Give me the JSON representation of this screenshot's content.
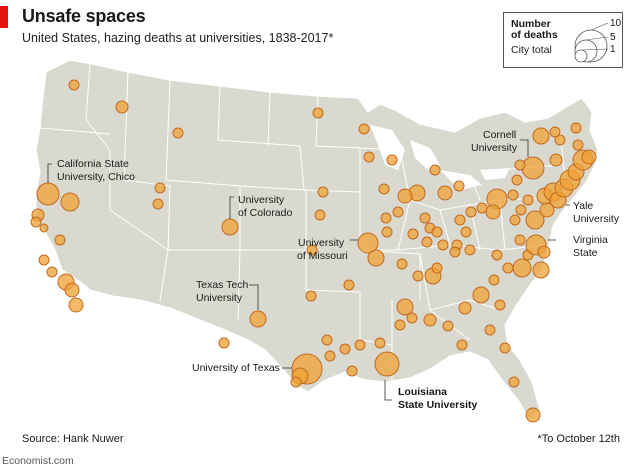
{
  "header": {
    "title": "Unsafe spaces",
    "subtitle": "United States, hazing deaths at universities, 1838-2017*"
  },
  "legend": {
    "title_line1": "Number",
    "title_line2": "of deaths",
    "subtitle": "City total",
    "sizes": [
      "10",
      "5",
      "1"
    ]
  },
  "labels": {
    "chico_1": "California State",
    "chico_2": "University, Chico",
    "colorado_1": "University",
    "colorado_2": "of Colorado",
    "missouri_1": "University",
    "missouri_2": "of Missouri",
    "texastech_1": "Texas Tech",
    "texastech_2": "University",
    "texas": "University of Texas",
    "lsu_1": "Louisiana",
    "lsu_2": "State University",
    "cornell_1": "Cornell",
    "cornell_2": "University",
    "yale_1": "Yale",
    "yale_2": "University",
    "virginia_1": "Virginia",
    "virginia_2": "State"
  },
  "footer": {
    "source": "Source: Hank Nuwer",
    "note": "*To October 12th",
    "brand": "Economist.com"
  },
  "colors": {
    "land": "#d9d9cf",
    "borders": "#ffffff",
    "bubble_fill": "#f0a234",
    "bubble_stroke": "#c2691f",
    "highlight": "#e3120b"
  }
}
